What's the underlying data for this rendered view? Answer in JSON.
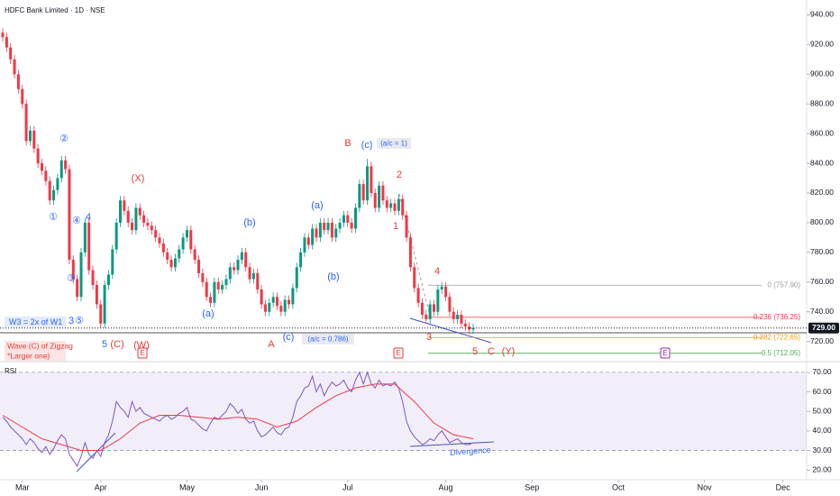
{
  "chart_data": {
    "type": "candlestick",
    "title": "HDFC Bank Limited · 1D · NSE",
    "up_color": "#089981",
    "down_color": "#f23645",
    "xlim": [
      0,
      204
    ],
    "xticks": [
      {
        "value": 5,
        "label": "Mar"
      },
      {
        "value": 25,
        "label": "Apr"
      },
      {
        "value": 47,
        "label": "May"
      },
      {
        "value": 66,
        "label": "Jun"
      },
      {
        "value": 88,
        "label": "Jul"
      },
      {
        "value": 113,
        "label": "Aug"
      },
      {
        "value": 135,
        "label": "Sep"
      },
      {
        "value": 157,
        "label": "Oct"
      },
      {
        "value": 179,
        "label": "Nov"
      },
      {
        "value": 199,
        "label": "Dec"
      }
    ],
    "ylim": [
      707,
      950
    ],
    "yticks": [
      {
        "value": 720,
        "label": "720.00"
      },
      {
        "value": 740,
        "label": "740.00"
      },
      {
        "value": 760,
        "label": "760.00"
      },
      {
        "value": 780,
        "label": "780.00"
      },
      {
        "value": 800,
        "label": "800.00"
      },
      {
        "value": 820,
        "label": "820.00"
      },
      {
        "value": 840,
        "label": "840.00"
      },
      {
        "value": 860,
        "label": "860.00"
      },
      {
        "value": 880,
        "label": "880.00"
      },
      {
        "value": 900,
        "label": "900.00"
      },
      {
        "value": 920,
        "label": "920.00"
      },
      {
        "value": 940,
        "label": "940.00"
      }
    ],
    "last_price": {
      "value": 729,
      "label": "729.00"
    },
    "ohlc": [
      [
        928,
        931,
        922,
        925
      ],
      [
        925,
        928,
        915,
        918
      ],
      [
        918,
        921,
        907,
        910
      ],
      [
        910,
        913,
        897,
        900
      ],
      [
        900,
        903,
        887,
        890
      ],
      [
        890,
        893,
        877,
        880
      ],
      [
        880,
        883,
        852,
        855
      ],
      [
        855,
        865,
        852,
        862
      ],
      [
        862,
        865,
        847,
        850
      ],
      [
        850,
        853,
        837,
        840
      ],
      [
        840,
        843,
        832,
        835
      ],
      [
        835,
        838,
        825,
        828
      ],
      [
        828,
        831,
        812,
        815
      ],
      [
        815,
        825,
        812,
        822
      ],
      [
        822,
        833,
        819,
        830
      ],
      [
        830,
        845,
        827,
        842
      ],
      [
        842,
        845,
        833,
        836
      ],
      [
        836,
        839,
        772,
        775
      ],
      [
        775,
        778,
        759,
        762
      ],
      [
        762,
        765,
        747,
        750
      ],
      [
        750,
        783,
        747,
        780
      ],
      [
        780,
        803,
        777,
        800
      ],
      [
        800,
        803,
        765,
        768
      ],
      [
        768,
        771,
        755,
        758
      ],
      [
        758,
        761,
        742,
        745
      ],
      [
        745,
        748,
        729,
        732
      ],
      [
        732,
        761,
        729,
        758
      ],
      [
        758,
        768,
        755,
        765
      ],
      [
        765,
        785,
        762,
        782
      ],
      [
        782,
        803,
        779,
        800
      ],
      [
        800,
        818,
        797,
        815
      ],
      [
        815,
        818,
        805,
        808
      ],
      [
        808,
        811,
        797,
        800
      ],
      [
        800,
        803,
        792,
        795
      ],
      [
        795,
        813,
        792,
        810
      ],
      [
        810,
        813,
        802,
        805
      ],
      [
        805,
        808,
        797,
        800
      ],
      [
        800,
        803,
        795,
        798
      ],
      [
        798,
        801,
        792,
        795
      ],
      [
        795,
        798,
        787,
        790
      ],
      [
        790,
        793,
        783,
        786
      ],
      [
        786,
        789,
        777,
        780
      ],
      [
        780,
        783,
        772,
        775
      ],
      [
        775,
        778,
        767,
        770
      ],
      [
        770,
        779,
        767,
        776
      ],
      [
        776,
        785,
        773,
        782
      ],
      [
        782,
        793,
        779,
        790
      ],
      [
        790,
        798,
        787,
        795
      ],
      [
        795,
        798,
        779,
        782
      ],
      [
        782,
        785,
        772,
        775
      ],
      [
        775,
        778,
        763,
        766
      ],
      [
        766,
        769,
        757,
        760
      ],
      [
        760,
        763,
        747,
        750
      ],
      [
        750,
        753,
        743,
        746
      ],
      [
        746,
        763,
        743,
        760
      ],
      [
        760,
        763,
        752,
        755
      ],
      [
        755,
        761,
        752,
        758
      ],
      [
        758,
        765,
        755,
        762
      ],
      [
        762,
        773,
        759,
        770
      ],
      [
        770,
        773,
        765,
        768
      ],
      [
        768,
        778,
        765,
        775
      ],
      [
        775,
        783,
        772,
        780
      ],
      [
        780,
        783,
        767,
        770
      ],
      [
        770,
        773,
        759,
        762
      ],
      [
        762,
        769,
        759,
        766
      ],
      [
        766,
        769,
        752,
        755
      ],
      [
        755,
        758,
        742,
        745
      ],
      [
        745,
        748,
        737,
        740
      ],
      [
        740,
        749,
        737,
        746
      ],
      [
        746,
        753,
        743,
        750
      ],
      [
        750,
        753,
        741,
        744
      ],
      [
        744,
        747,
        737,
        740
      ],
      [
        740,
        751,
        737,
        748
      ],
      [
        748,
        751,
        742,
        745
      ],
      [
        745,
        759,
        742,
        756
      ],
      [
        756,
        773,
        753,
        770
      ],
      [
        770,
        783,
        767,
        780
      ],
      [
        780,
        793,
        777,
        790
      ],
      [
        790,
        793,
        782,
        785
      ],
      [
        785,
        799,
        782,
        796
      ],
      [
        796,
        799,
        787,
        790
      ],
      [
        790,
        803,
        787,
        800
      ],
      [
        800,
        803,
        792,
        795
      ],
      [
        795,
        803,
        792,
        800
      ],
      [
        800,
        803,
        787,
        790
      ],
      [
        790,
        799,
        787,
        796
      ],
      [
        796,
        803,
        793,
        800
      ],
      [
        800,
        808,
        797,
        805
      ],
      [
        805,
        808,
        797,
        800
      ],
      [
        800,
        803,
        793,
        796
      ],
      [
        796,
        813,
        793,
        810
      ],
      [
        810,
        829,
        807,
        826
      ],
      [
        826,
        829,
        812,
        815
      ],
      [
        815,
        843,
        812,
        838
      ],
      [
        838,
        841,
        817,
        820
      ],
      [
        820,
        823,
        807,
        810
      ],
      [
        810,
        828,
        807,
        825
      ],
      [
        825,
        828,
        812,
        815
      ],
      [
        815,
        818,
        807,
        810
      ],
      [
        810,
        816,
        807,
        813
      ],
      [
        813,
        816,
        805,
        808
      ],
      [
        808,
        819,
        805,
        816
      ],
      [
        816,
        819,
        802,
        805
      ],
      [
        805,
        808,
        787,
        790
      ],
      [
        790,
        793,
        767,
        770
      ],
      [
        770,
        773,
        753,
        756
      ],
      [
        756,
        759,
        743,
        746
      ],
      [
        746,
        749,
        735,
        738
      ],
      [
        738,
        741,
        732,
        735
      ],
      [
        735,
        748,
        732,
        745
      ],
      [
        745,
        748,
        737,
        740
      ],
      [
        740,
        758,
        737,
        755
      ],
      [
        755,
        760,
        752,
        757
      ],
      [
        757,
        760,
        747,
        750
      ],
      [
        750,
        753,
        737,
        740
      ],
      [
        740,
        743,
        732,
        735
      ],
      [
        735,
        741,
        732,
        738
      ],
      [
        738,
        741,
        729,
        732
      ],
      [
        732,
        735,
        727,
        730
      ],
      [
        730,
        733,
        725,
        728
      ],
      [
        728,
        732,
        725,
        729
      ]
    ],
    "fib_levels": [
      {
        "label": "0 (757.90)",
        "value": 757.9,
        "color": "#9e9e9e"
      },
      {
        "label": "0.236 (736.25)",
        "value": 736.25,
        "color": "#f23645"
      },
      {
        "label": "0.382 (722.65)",
        "value": 722.65,
        "color": "#ff9800"
      },
      {
        "label": "0.5 (712.05)",
        "value": 712.05,
        "color": "#4caf50"
      }
    ],
    "wave_labels": [
      {
        "text": "①",
        "color": "#2962ff"
      },
      {
        "text": "②",
        "color": "#2962ff"
      },
      {
        "text": "③",
        "color": "#2962ff"
      },
      {
        "text": "④",
        "color": "#2962ff"
      },
      {
        "text": "⑤",
        "color": "#2962ff"
      },
      {
        "text": "4",
        "color": "#2962ff"
      },
      {
        "text": "3",
        "color": "#2962ff"
      },
      {
        "text": "5",
        "color": "#2962ff"
      },
      {
        "text": "(C)",
        "color": "#e53935"
      },
      {
        "text": "(W)",
        "color": "#e53935"
      },
      {
        "text": "(X)",
        "color": "#e53935"
      },
      {
        "text": "(a)",
        "color": "#2962ff"
      },
      {
        "text": "(b)",
        "color": "#2962ff"
      },
      {
        "text": "(c)",
        "color": "#2962ff"
      },
      {
        "text": "(a)",
        "color": "#2962ff"
      },
      {
        "text": "(b)",
        "color": "#2962ff"
      },
      {
        "text": "(c)",
        "color": "#2962ff"
      },
      {
        "text": "A",
        "color": "#e53935"
      },
      {
        "text": "B",
        "color": "#e53935"
      },
      {
        "text": "1",
        "color": "#e53935"
      },
      {
        "text": "2",
        "color": "#e53935"
      },
      {
        "text": "3",
        "color": "#e53935"
      },
      {
        "text": "4",
        "color": "#e53935"
      },
      {
        "text": "5",
        "color": "#e53935"
      },
      {
        "text": "C",
        "color": "#e53935"
      },
      {
        "text": "(Y)",
        "color": "#e53935"
      }
    ],
    "notes": [
      "W3 = 2x of W1",
      "Wave (C) of Zigzag",
      "*Larger one)",
      "(a/c = 1)",
      "(a/c = 0.786)",
      "Divergence"
    ],
    "event_markers": [
      "E",
      "E",
      "E"
    ],
    "rsi": {
      "label": "RSI",
      "color": "#7e57c2",
      "ylim": [
        15,
        75
      ],
      "yticks": [
        {
          "value": 20,
          "label": "20.00"
        },
        {
          "value": 30,
          "label": "30.00"
        },
        {
          "value": 40,
          "label": "40.00"
        },
        {
          "value": 50,
          "label": "50.00"
        },
        {
          "value": 60,
          "label": "60.00"
        },
        {
          "value": 70,
          "label": "70.00"
        }
      ],
      "band": [
        30,
        70
      ],
      "values": [
        47,
        45,
        42,
        40,
        38,
        36,
        33,
        36,
        34,
        31,
        29,
        32,
        28,
        31,
        35,
        38,
        36,
        28,
        25,
        22,
        27,
        34,
        28,
        26,
        30,
        27,
        34,
        38,
        45,
        55,
        52,
        50,
        47,
        55,
        50,
        52,
        49,
        48,
        47,
        46,
        45,
        47,
        48,
        46,
        47,
        49,
        50,
        52,
        46,
        45,
        43,
        41,
        40,
        44,
        47,
        46,
        48,
        50,
        54,
        52,
        49,
        51,
        46,
        44,
        45,
        40,
        37,
        38,
        40,
        42,
        39,
        38,
        41,
        42,
        47,
        55,
        58,
        62,
        63,
        68,
        60,
        64,
        58,
        62,
        65,
        63,
        64,
        66,
        62,
        60,
        66,
        70,
        64,
        70,
        64,
        62,
        66,
        63,
        64,
        63,
        65,
        62,
        55,
        45,
        40,
        37,
        35,
        33,
        34,
        36,
        35,
        38,
        40,
        37,
        34,
        35,
        36,
        34,
        33,
        33,
        34
      ]
    },
    "rsi_ma": {
      "color": "#f23645",
      "x": [
        0,
        5,
        10,
        15,
        20,
        25,
        30,
        35,
        40,
        45,
        50,
        55,
        60,
        65,
        70,
        75,
        80,
        85,
        90,
        95,
        100,
        105,
        110,
        115,
        120
      ],
      "values": [
        48,
        42,
        36,
        33,
        30,
        30,
        36,
        44,
        48,
        48,
        47,
        46,
        47,
        46,
        42,
        45,
        52,
        58,
        62,
        64,
        64,
        55,
        44,
        38,
        36
      ]
    }
  }
}
